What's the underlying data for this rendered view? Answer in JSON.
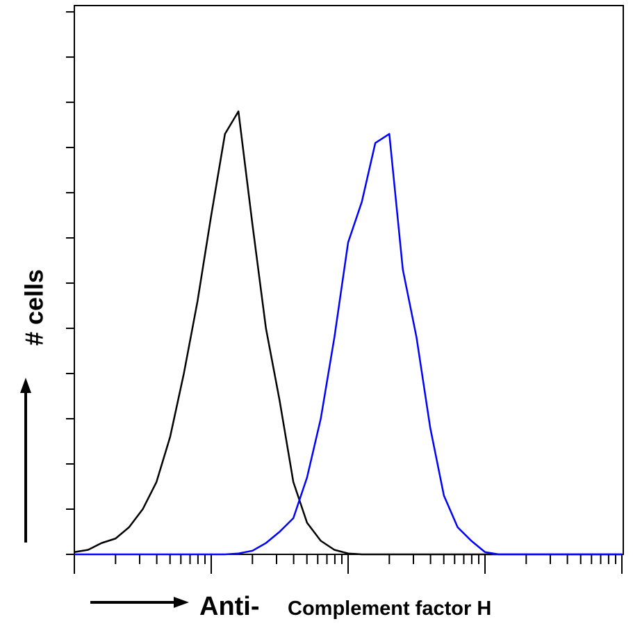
{
  "chart_data": {
    "type": "line",
    "ylabel": "# cells",
    "xlabel": [
      "Anti-",
      "Complement factor H"
    ],
    "xscale": "log",
    "xlim": [
      1,
      10000
    ],
    "ylim": [
      0,
      12.14
    ],
    "xticks": [
      1,
      10,
      100,
      1000,
      10000
    ],
    "xticks_minor": [
      2,
      3,
      4,
      5,
      6,
      7,
      8,
      9,
      20,
      30,
      40,
      50,
      60,
      70,
      80,
      90,
      200,
      300,
      400,
      500,
      600,
      700,
      800,
      900,
      2000,
      3000,
      4000,
      5000,
      6000,
      7000,
      8000,
      9000
    ],
    "yticks": [
      0,
      1,
      2,
      3,
      4,
      5,
      6,
      7,
      8,
      9,
      10,
      11,
      12
    ],
    "x": [
      1,
      1.26,
      1.58,
      2,
      2.51,
      3.16,
      3.98,
      5.01,
      6.31,
      7.94,
      10,
      12.6,
      15.8,
      20,
      25.1,
      31.6,
      39.8,
      50.1,
      63.1,
      79.4,
      100,
      126,
      158,
      200,
      251,
      316,
      398,
      501,
      631,
      794,
      1000,
      1260,
      1580,
      2000,
      2510,
      3160,
      3980,
      5010,
      6310,
      7940,
      10000
    ],
    "series": [
      {
        "color": "#000000",
        "values": [
          0.05,
          0.1,
          0.25,
          0.35,
          0.6,
          1.0,
          1.6,
          2.6,
          4.0,
          5.6,
          7.5,
          9.3,
          9.8,
          7.3,
          5.0,
          3.4,
          1.6,
          0.7,
          0.3,
          0.1,
          0.02,
          0,
          0,
          0,
          0,
          0,
          0,
          0,
          0,
          0,
          0,
          0,
          0,
          0,
          0,
          0,
          0,
          0,
          0,
          0,
          0
        ]
      },
      {
        "color": "#0000ff",
        "values": [
          0,
          0,
          0,
          0,
          0,
          0,
          0,
          0,
          0,
          0,
          0,
          0,
          0.02,
          0.08,
          0.25,
          0.5,
          0.8,
          1.7,
          3.0,
          4.8,
          6.9,
          7.8,
          9.1,
          9.3,
          6.3,
          4.8,
          2.8,
          1.3,
          0.6,
          0.3,
          0.05,
          0,
          0,
          0,
          0,
          0,
          0,
          0,
          0,
          0,
          0
        ]
      }
    ]
  }
}
